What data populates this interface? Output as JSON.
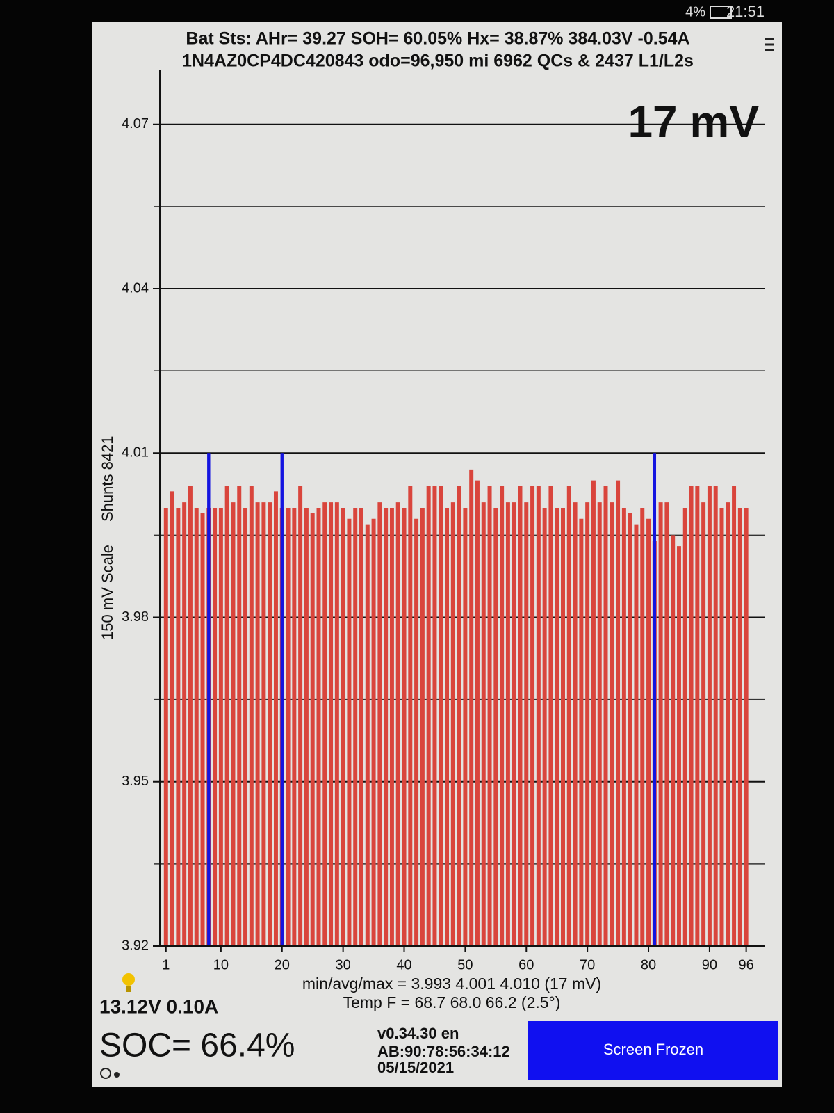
{
  "status_bar": {
    "battery": "4%",
    "time": "21:51"
  },
  "header": {
    "line1": "Bat Sts:  AHr= 39.27  SOH= 60.05%  Hx= 38.87%  384.03V -0.54A",
    "line2": "1N4AZ0CP4DC420843 odo=96,950 mi  6962 QCs  &  2437 L1/L2s"
  },
  "chart_data": {
    "type": "bar",
    "annotation": "17 mV",
    "y_label": "150 mV Scale",
    "shunts_label": "Shunts 8421",
    "x": [
      1,
      2,
      3,
      4,
      5,
      6,
      7,
      8,
      9,
      10,
      11,
      12,
      13,
      14,
      15,
      16,
      17,
      18,
      19,
      20,
      21,
      22,
      23,
      24,
      25,
      26,
      27,
      28,
      29,
      30,
      31,
      32,
      33,
      34,
      35,
      36,
      37,
      38,
      39,
      40,
      41,
      42,
      43,
      44,
      45,
      46,
      47,
      48,
      49,
      50,
      51,
      52,
      53,
      54,
      55,
      56,
      57,
      58,
      59,
      60,
      61,
      62,
      63,
      64,
      65,
      66,
      67,
      68,
      69,
      70,
      71,
      72,
      73,
      74,
      75,
      76,
      77,
      78,
      79,
      80,
      81,
      82,
      83,
      84,
      85,
      86,
      87,
      88,
      89,
      90,
      91,
      92,
      93,
      94,
      95,
      96
    ],
    "series": [
      {
        "color": "#d9453c",
        "values": [
          4.0,
          4.003,
          4.0,
          4.001,
          4.004,
          4.0,
          3.999,
          4.0,
          4.0,
          4.0,
          4.004,
          4.001,
          4.004,
          4.0,
          4.004,
          4.001,
          4.001,
          4.001,
          4.003,
          4.0,
          4.0,
          4.0,
          4.004,
          4.0,
          3.999,
          4.0,
          4.001,
          4.001,
          4.001,
          4.0,
          3.998,
          4.0,
          4.0,
          3.997,
          3.998,
          4.001,
          4.0,
          4.0,
          4.001,
          4.0,
          4.004,
          3.998,
          4.0,
          4.004,
          4.004,
          4.004,
          4.0,
          4.001,
          4.004,
          4.0,
          4.007,
          4.005,
          4.001,
          4.004,
          4.0,
          4.004,
          4.001,
          4.001,
          4.004,
          4.001,
          4.004,
          4.004,
          4.0,
          4.004,
          4.0,
          4.0,
          4.004,
          4.001,
          3.998,
          4.001,
          4.005,
          4.001,
          4.004,
          4.001,
          4.005,
          4.0,
          3.999,
          3.997,
          4.0,
          3.998,
          3.994,
          4.001,
          4.001,
          3.995,
          3.993,
          4.0,
          4.004,
          4.004,
          4.001,
          4.004,
          4.004,
          4.0,
          4.001,
          4.004,
          4.0,
          4.0
        ]
      },
      {
        "color": "#1414e0",
        "values": [
          null,
          null,
          null,
          null,
          null,
          null,
          null,
          4.01,
          null,
          null,
          null,
          null,
          null,
          null,
          null,
          null,
          null,
          null,
          null,
          4.01,
          null,
          null,
          null,
          null,
          null,
          null,
          null,
          null,
          null,
          null,
          null,
          null,
          null,
          null,
          null,
          null,
          null,
          null,
          null,
          null,
          null,
          null,
          null,
          null,
          null,
          null,
          null,
          null,
          null,
          null,
          null,
          null,
          null,
          null,
          null,
          null,
          null,
          null,
          null,
          null,
          null,
          null,
          null,
          null,
          null,
          null,
          null,
          null,
          null,
          null,
          null,
          null,
          null,
          null,
          null,
          null,
          null,
          null,
          null,
          null,
          4.01,
          null,
          null,
          null,
          null,
          null,
          null,
          null,
          null,
          null,
          null,
          null,
          null,
          null,
          null,
          null
        ]
      }
    ],
    "xlim": [
      0,
      99
    ],
    "xticks": [
      1,
      10,
      20,
      30,
      40,
      50,
      60,
      70,
      80,
      90,
      96
    ],
    "ylim": [
      3.92,
      4.08
    ],
    "yticks": [
      3.92,
      3.95,
      3.98,
      4.01,
      4.04,
      4.07
    ],
    "minor_yticks": [
      3.935,
      3.965,
      3.995,
      4.025,
      4.055
    ],
    "grid": true
  },
  "footer": {
    "stats": "min/avg/max = 3.993 4.001 4.010  (17 mV)",
    "temps": "Temp F = 68.7  68.0  66.2  (2.5°)",
    "aux_battery": "13.12V 0.10A",
    "soc": "SOC= 66.4%",
    "version": "v0.34.30 en",
    "mac": "AB:90:78:56:34:12",
    "date": "05/15/2021",
    "button": "Screen Frozen"
  }
}
